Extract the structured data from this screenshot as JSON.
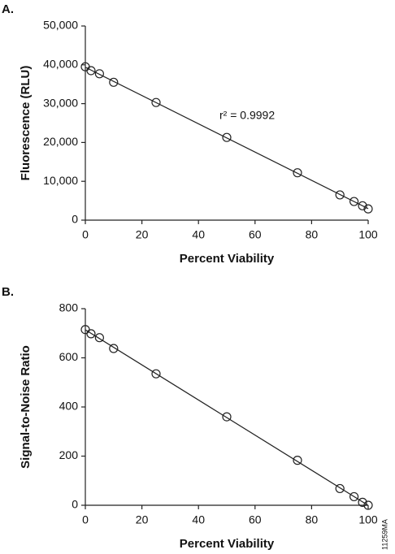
{
  "chart_data": [
    {
      "type": "scatter",
      "label": "A.",
      "x_label": "Percent Viability",
      "y_label": "Fluorescence (RLU)",
      "annotation": "r² = 0.9992",
      "x": [
        0,
        2,
        5,
        10,
        25,
        50,
        75,
        90,
        95,
        98,
        100
      ],
      "values": [
        39500,
        38500,
        37700,
        35500,
        30300,
        21300,
        12200,
        6500,
        4800,
        3700,
        2900
      ],
      "xlim": [
        0,
        100
      ],
      "xticks": [
        0,
        20,
        40,
        60,
        80,
        100
      ],
      "ylim": [
        0,
        50000
      ],
      "yticks": [
        0,
        {
          "value": 10000,
          "label": "10,000"
        },
        {
          "value": 20000,
          "label": "20,000"
        },
        {
          "value": 30000,
          "label": "30,000"
        },
        {
          "value": 40000,
          "label": "40,000"
        },
        {
          "value": 50000,
          "label": "50,000"
        }
      ],
      "color": "#222",
      "grid": false
    },
    {
      "type": "scatter",
      "label": "B.",
      "x_label": "Percent Viability",
      "y_label": "Signal-to-Noise Ratio",
      "x": [
        0,
        2,
        5,
        10,
        25,
        50,
        75,
        90,
        95,
        98,
        100
      ],
      "values": [
        715,
        698,
        682,
        638,
        535,
        360,
        183,
        68,
        35,
        12,
        0
      ],
      "xlim": [
        0,
        100
      ],
      "xticks": [
        0,
        20,
        40,
        60,
        80,
        100
      ],
      "ylim": [
        0,
        800
      ],
      "yticks": [
        0,
        200,
        400,
        600,
        800
      ],
      "color": "#222",
      "grid": false
    }
  ],
  "figure_code": "11259MA"
}
